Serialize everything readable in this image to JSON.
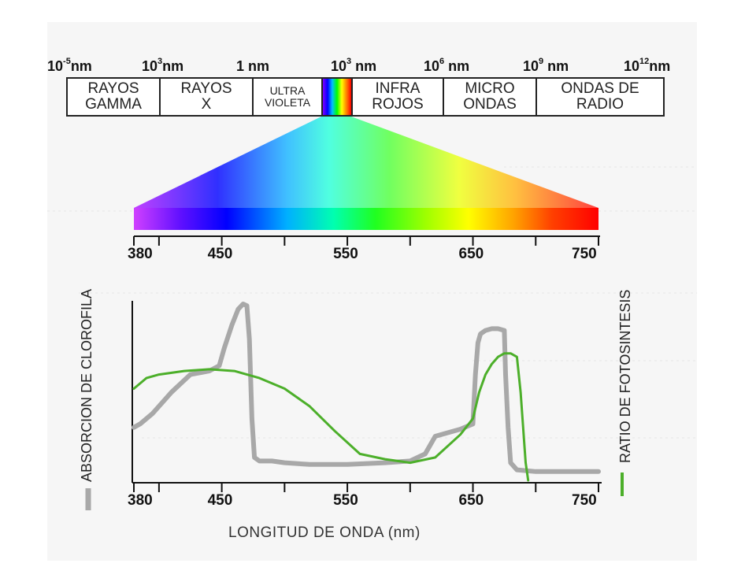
{
  "scale_labels": [
    {
      "base": "10",
      "exp": "-5",
      "unit": "nm"
    },
    {
      "base": "10",
      "exp": "3",
      "unit": "nm"
    },
    {
      "base": "1",
      "exp": "",
      "unit": " nm"
    },
    {
      "base": "10",
      "exp": "3",
      "unit": " nm"
    },
    {
      "base": "10",
      "exp": "6",
      "unit": " nm"
    },
    {
      "base": "10",
      "exp": "9",
      "unit": " nm"
    },
    {
      "base": "10",
      "exp": "12",
      "unit": "nm"
    }
  ],
  "bands": [
    {
      "line1": "RAYOS",
      "line2": "GAMMA"
    },
    {
      "line1": "RAYOS",
      "line2": "X"
    },
    {
      "line1": "ULTRA",
      "line2": "VIOLETA"
    },
    {
      "line1": "",
      "line2": ""
    },
    {
      "line1": "INFRA",
      "line2": "ROJOS"
    },
    {
      "line1": "MICRO",
      "line2": "ONDAS"
    },
    {
      "line1": "ONDAS DE",
      "line2": "RADIO"
    }
  ],
  "spectrum_ticks": [
    "380",
    "450",
    "550",
    "650",
    "750"
  ],
  "chart_data": {
    "type": "line",
    "xlabel": "LONGITUD DE ONDA (nm)",
    "ylabel_left": "ABSORCION DE CLOROFILA",
    "ylabel_right": "RATIO DE FOTOSINTESIS",
    "x_ticks": [
      "380",
      "450",
      "550",
      "650",
      "750"
    ],
    "xlim": [
      380,
      750
    ],
    "series": [
      {
        "color": "#a8a8a8",
        "x": [
          380,
          385,
          395,
          410,
          425,
          440,
          448,
          452,
          458,
          463,
          467,
          470,
          472,
          474,
          476,
          480,
          490,
          500,
          520,
          550,
          580,
          600,
          612,
          620,
          630,
          640,
          650,
          652,
          654,
          656,
          660,
          665,
          670,
          675,
          676,
          678,
          680,
          685,
          700,
          720,
          750
        ],
        "y": [
          0.3,
          0.32,
          0.38,
          0.5,
          0.6,
          0.62,
          0.65,
          0.75,
          0.88,
          0.97,
          1.0,
          0.99,
          0.8,
          0.35,
          0.13,
          0.11,
          0.11,
          0.1,
          0.09,
          0.09,
          0.1,
          0.11,
          0.15,
          0.25,
          0.27,
          0.29,
          0.32,
          0.6,
          0.78,
          0.83,
          0.85,
          0.86,
          0.86,
          0.85,
          0.6,
          0.3,
          0.1,
          0.06,
          0.05,
          0.05,
          0.05
        ]
      },
      {
        "color": "#4caf2a",
        "x": [
          380,
          390,
          400,
          420,
          440,
          460,
          480,
          500,
          520,
          540,
          560,
          580,
          600,
          620,
          640,
          650,
          655,
          660,
          665,
          670,
          675,
          680,
          685,
          688,
          690,
          692,
          694
        ],
        "y": [
          0.52,
          0.58,
          0.6,
          0.62,
          0.63,
          0.62,
          0.58,
          0.52,
          0.42,
          0.28,
          0.15,
          0.12,
          0.1,
          0.13,
          0.26,
          0.35,
          0.5,
          0.6,
          0.66,
          0.7,
          0.72,
          0.72,
          0.7,
          0.5,
          0.3,
          0.1,
          0.0
        ]
      }
    ]
  }
}
